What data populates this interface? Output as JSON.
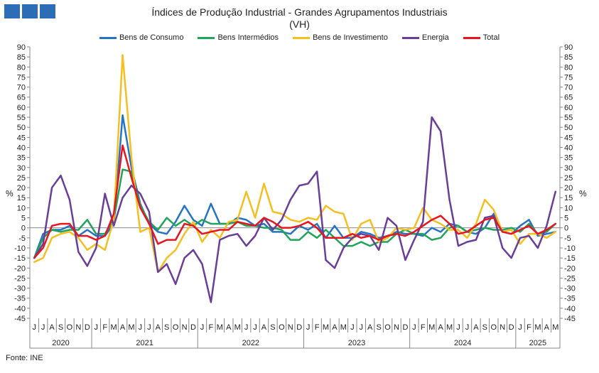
{
  "header": {
    "title": "Índices de Produção Industrial - Grandes Agrupamentos Industriais",
    "subtitle": "(VH)"
  },
  "footer": {
    "source": "Fonte: INE"
  },
  "chart_data": {
    "type": "line",
    "ylabel_left": "%",
    "ylabel_right": "%",
    "ylim": [
      -45,
      90
    ],
    "ytick_step": 5,
    "grid": false,
    "legend_position": "top",
    "x_month_letters": [
      "J",
      "J",
      "A",
      "S",
      "O",
      "N",
      "D",
      "J",
      "F",
      "M",
      "A",
      "M",
      "J",
      "J",
      "A",
      "S",
      "O",
      "N",
      "D",
      "J",
      "F",
      "M",
      "A",
      "M",
      "J",
      "J",
      "A",
      "S",
      "O",
      "N",
      "D",
      "J",
      "F",
      "M",
      "A",
      "M",
      "J",
      "J",
      "A",
      "S",
      "O",
      "N",
      "D",
      "J",
      "F",
      "M",
      "A",
      "M",
      "J",
      "J",
      "A",
      "S",
      "O",
      "N",
      "D",
      "J",
      "F",
      "M",
      "A",
      "M"
    ],
    "year_groups": [
      {
        "label": "2020",
        "count": 7
      },
      {
        "label": "2021",
        "count": 12
      },
      {
        "label": "2022",
        "count": 12
      },
      {
        "label": "2023",
        "count": 12
      },
      {
        "label": "2024",
        "count": 12
      },
      {
        "label": "2025",
        "count": 5
      }
    ],
    "series": [
      {
        "name": "Bens de Consumo",
        "color": "#2473c4",
        "values": [
          -15,
          -3,
          -1,
          -1,
          1,
          -4,
          -1,
          -4,
          -4,
          2,
          56,
          30,
          12,
          2,
          -2,
          -3,
          3,
          11,
          4,
          1,
          12,
          2,
          2,
          5,
          4,
          1,
          2,
          -2,
          -2,
          -3,
          1,
          -1,
          2,
          -5,
          1,
          -5,
          -5,
          -2,
          -3,
          -5,
          -4,
          -2,
          -3,
          -3,
          -4,
          0,
          -2,
          2,
          1,
          -2,
          -3,
          0,
          7,
          -2,
          -3,
          1,
          4,
          -4,
          -3,
          -2
        ]
      },
      {
        "name": "Bens Intermédios",
        "color": "#1fa45a",
        "values": [
          -15,
          -5,
          -1,
          -2,
          -1,
          -1,
          4,
          -3,
          -3,
          4,
          29,
          28,
          11,
          3,
          -1,
          5,
          1,
          4,
          1,
          4,
          2,
          2,
          2,
          3,
          1,
          1,
          0,
          0,
          -1,
          -6,
          -6,
          -2,
          -5,
          -1,
          -5,
          -9,
          -9,
          -7,
          -9,
          -7,
          -7,
          -3,
          -1,
          -3,
          -3,
          -6,
          -5,
          0,
          1,
          -2,
          -1,
          0,
          -1,
          -1,
          0,
          -2,
          2,
          -3,
          -2,
          2
        ]
      },
      {
        "name": "Bens de Investimento",
        "color": "#f5bf21",
        "values": [
          -17,
          -15,
          -5,
          -3,
          -2,
          -5,
          -11,
          -8,
          -11,
          4,
          86,
          35,
          -2,
          0,
          -22,
          -15,
          -11,
          -3,
          3,
          -7,
          -1,
          -5,
          3,
          4,
          18,
          5,
          22,
          8,
          7,
          4,
          3,
          5,
          4,
          11,
          8,
          7,
          -6,
          2,
          4,
          -7,
          -5,
          0,
          -1,
          0,
          10,
          4,
          2,
          -1,
          -1,
          -5,
          2,
          14,
          9,
          -2,
          -1,
          -8,
          -3,
          -3,
          -5,
          -2
        ]
      },
      {
        "name": "Energia",
        "color": "#6a3e98",
        "values": [
          -15,
          -8,
          20,
          26,
          14,
          -12,
          -19,
          -10,
          17,
          1,
          15,
          21,
          17,
          8,
          -22,
          -18,
          -28,
          -15,
          -11,
          -18,
          -37,
          -6,
          -4,
          -3,
          -9,
          -4,
          5,
          -1,
          4,
          14,
          21,
          22,
          28,
          -16,
          -20,
          -10,
          -5,
          -3,
          -4,
          -11,
          5,
          1,
          -16,
          -6,
          3,
          55,
          48,
          14,
          -9,
          -7,
          -6,
          5,
          6,
          -10,
          -15,
          -5,
          -4,
          -10,
          1,
          18
        ]
      },
      {
        "name": "Total",
        "color": "#e8141f",
        "values": [
          -15,
          -10,
          1,
          2,
          2,
          -4,
          -4,
          -6,
          -4,
          7,
          41,
          25,
          10,
          2,
          -8,
          -6,
          -6,
          2,
          1,
          -3,
          -2,
          -1,
          -1,
          3,
          2,
          1,
          5,
          3,
          0,
          0,
          1,
          3,
          0,
          -5,
          -5,
          -5,
          -3,
          -5,
          -4,
          -6,
          -4,
          -3,
          -4,
          -2,
          1,
          4,
          6,
          2,
          -3,
          -2,
          1,
          4,
          5,
          -2,
          -3,
          -1,
          1,
          -3,
          -1,
          2
        ]
      }
    ]
  }
}
